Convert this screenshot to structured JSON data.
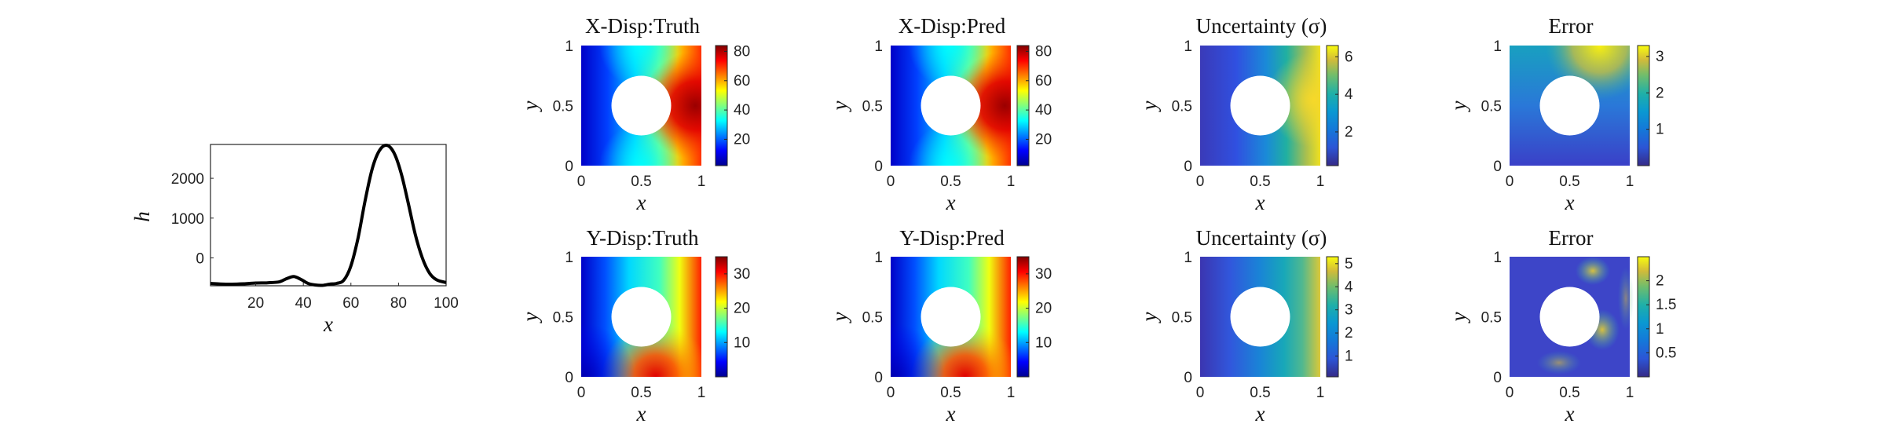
{
  "chart_data": [
    {
      "type": "line",
      "xlabel": "x",
      "ylabel": "h",
      "xlim": [
        1,
        100
      ],
      "ylim": [
        -700,
        2850
      ],
      "xticks": [
        "20",
        "40",
        "60",
        "80",
        "100"
      ],
      "yticks": [
        "0",
        "1000",
        "2000"
      ],
      "grid": false,
      "series": [
        {
          "x": [
            1,
            5,
            10,
            15,
            20,
            25,
            30,
            33,
            36,
            39,
            42,
            45,
            48,
            51,
            54,
            57,
            60,
            63,
            66,
            69,
            72,
            75,
            78,
            81,
            84,
            87,
            90,
            93,
            96,
            100
          ],
          "values": [
            -640,
            -655,
            -660,
            -650,
            -630,
            -625,
            -600,
            -520,
            -470,
            -540,
            -640,
            -680,
            -690,
            -660,
            -640,
            -560,
            -200,
            500,
            1450,
            2250,
            2700,
            2830,
            2650,
            2150,
            1400,
            600,
            0,
            -380,
            -550,
            -620
          ]
        }
      ],
      "line_color": "#000000"
    },
    {
      "type": "heatmap",
      "title": "X-Disp:Truth",
      "xlabel": "x",
      "ylabel": "y",
      "xlim": [
        0,
        1
      ],
      "ylim": [
        0,
        1
      ],
      "xticks": [
        "0",
        "0.5",
        "1"
      ],
      "yticks": [
        "0",
        "0.5",
        "1"
      ],
      "colormap": "jet",
      "clim": [
        2,
        84
      ],
      "cbar_ticks": [
        "20",
        "40",
        "60",
        "80"
      ],
      "hole": {
        "cx": 0.5,
        "cy": 0.5,
        "r": 0.25
      }
    },
    {
      "type": "heatmap",
      "title": "X-Disp:Pred",
      "xlabel": "x",
      "ylabel": "y",
      "xlim": [
        0,
        1
      ],
      "ylim": [
        0,
        1
      ],
      "xticks": [
        "0",
        "0.5",
        "1"
      ],
      "yticks": [
        "0",
        "0.5",
        "1"
      ],
      "colormap": "jet",
      "clim": [
        2,
        84
      ],
      "cbar_ticks": [
        "20",
        "40",
        "60",
        "80"
      ],
      "hole": {
        "cx": 0.5,
        "cy": 0.5,
        "r": 0.25
      }
    },
    {
      "type": "heatmap",
      "title": "Uncertainty (σ)",
      "xlabel": "x",
      "ylabel": "y",
      "xlim": [
        0,
        1
      ],
      "ylim": [
        0,
        1
      ],
      "xticks": [
        "0",
        "0.5",
        "1"
      ],
      "yticks": [
        "0",
        "0.5",
        "1"
      ],
      "colormap": "parula",
      "clim": [
        0.2,
        6.6
      ],
      "cbar_ticks": [
        "2",
        "4",
        "6"
      ],
      "hole": {
        "cx": 0.5,
        "cy": 0.5,
        "r": 0.25
      }
    },
    {
      "type": "heatmap",
      "title": "Error",
      "xlabel": "x",
      "ylabel": "y",
      "xlim": [
        0,
        1
      ],
      "ylim": [
        0,
        1
      ],
      "xticks": [
        "0",
        "0.5",
        "1"
      ],
      "yticks": [
        "0",
        "0.5",
        "1"
      ],
      "colormap": "parula",
      "clim": [
        0,
        3.3
      ],
      "cbar_ticks": [
        "1",
        "2",
        "3"
      ],
      "hole": {
        "cx": 0.5,
        "cy": 0.5,
        "r": 0.25
      }
    },
    {
      "type": "heatmap",
      "title": "Y-Disp:Truth",
      "xlabel": "x",
      "ylabel": "y",
      "xlim": [
        0,
        1
      ],
      "ylim": [
        0,
        1
      ],
      "xticks": [
        "0",
        "0.5",
        "1"
      ],
      "yticks": [
        "0",
        "0.5",
        "1"
      ],
      "colormap": "jet",
      "clim": [
        0,
        35
      ],
      "cbar_ticks": [
        "10",
        "20",
        "30"
      ],
      "hole": {
        "cx": 0.5,
        "cy": 0.5,
        "r": 0.25
      }
    },
    {
      "type": "heatmap",
      "title": "Y-Disp:Pred",
      "xlabel": "x",
      "ylabel": "y",
      "xlim": [
        0,
        1
      ],
      "ylim": [
        0,
        1
      ],
      "xticks": [
        "0",
        "0.5",
        "1"
      ],
      "yticks": [
        "0",
        "0.5",
        "1"
      ],
      "colormap": "jet",
      "clim": [
        0,
        35
      ],
      "cbar_ticks": [
        "10",
        "20",
        "30"
      ],
      "hole": {
        "cx": 0.5,
        "cy": 0.5,
        "r": 0.25
      }
    },
    {
      "type": "heatmap",
      "title": "Uncertainty (σ)",
      "xlabel": "x",
      "ylabel": "y",
      "xlim": [
        0,
        1
      ],
      "ylim": [
        0,
        1
      ],
      "xticks": [
        "0",
        "0.5",
        "1"
      ],
      "yticks": [
        "0",
        "0.5",
        "1"
      ],
      "colormap": "parula",
      "clim": [
        0.1,
        5.3
      ],
      "cbar_ticks": [
        "1",
        "2",
        "3",
        "4",
        "5"
      ],
      "hole": {
        "cx": 0.5,
        "cy": 0.5,
        "r": 0.25
      }
    },
    {
      "type": "heatmap",
      "title": "Error",
      "xlabel": "x",
      "ylabel": "y",
      "xlim": [
        0,
        1
      ],
      "ylim": [
        0,
        1
      ],
      "xticks": [
        "0",
        "0.5",
        "1"
      ],
      "yticks": [
        "0",
        "0.5",
        "1"
      ],
      "colormap": "parula",
      "clim": [
        0,
        2.5
      ],
      "cbar_ticks": [
        "0.5",
        "1",
        "1.5",
        "2"
      ],
      "hole": {
        "cx": 0.5,
        "cy": 0.5,
        "r": 0.25
      }
    }
  ]
}
